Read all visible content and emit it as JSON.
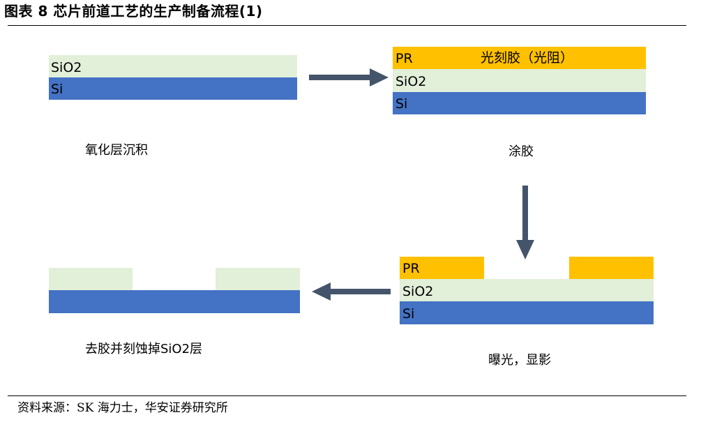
{
  "title": "图表 8 芯片前道工艺的生产制备流程(1)",
  "source": "资料来源：SK 海力士，华安证券研究所",
  "colors": {
    "sio2": "#e2efd9",
    "si": "#4472c4",
    "pr": "#ffc000",
    "arrow": "#44546a"
  },
  "steps": [
    {
      "caption": "氧化层沉积",
      "layers": {
        "sio2": "SiO2",
        "si": "Si"
      }
    },
    {
      "caption": "涂胶",
      "layers": {
        "pr": "PR",
        "pr_name": "光刻胶（光阻）",
        "sio2": "SiO2",
        "si": "Si"
      }
    },
    {
      "caption": "曝光，显影",
      "layers": {
        "pr": "PR",
        "sio2": "SiO2",
        "si": "Si"
      }
    },
    {
      "caption": "去胶并刻蚀掉SiO2层",
      "layers": {}
    }
  ]
}
